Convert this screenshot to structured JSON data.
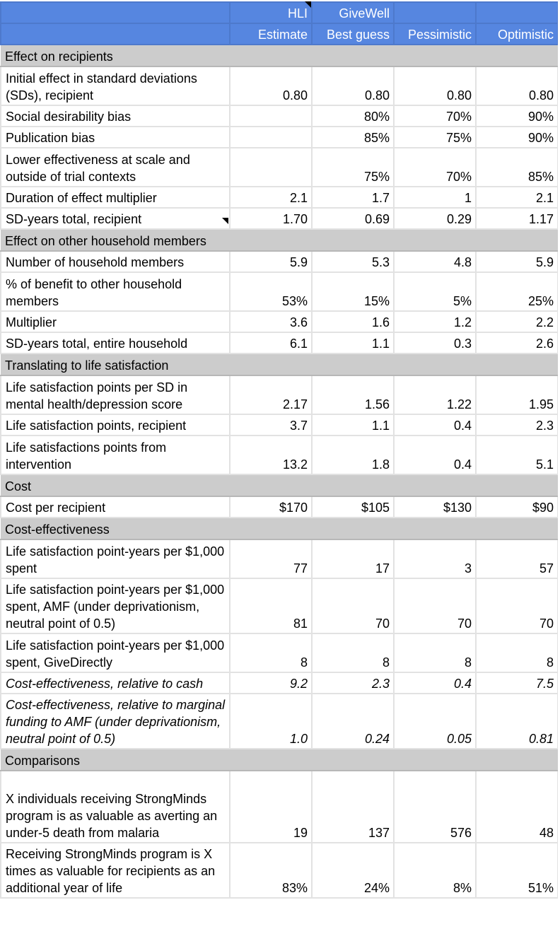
{
  "header": {
    "row1": [
      "",
      "HLI",
      "GiveWell",
      "",
      ""
    ],
    "row2": [
      "",
      "Estimate",
      "Best guess",
      "Pessimistic",
      "Optimistic"
    ]
  },
  "sections": [
    {
      "title": "Effect on recipients",
      "rows": [
        {
          "label": "Initial effect in standard deviations (SDs), recipient",
          "values": [
            "0.80",
            "0.80",
            "0.80",
            "0.80"
          ],
          "lines": 2
        },
        {
          "label": "Social desirability bias",
          "values": [
            "",
            "80%",
            "70%",
            "90%"
          ],
          "lines": 1
        },
        {
          "label": "Publication bias",
          "values": [
            "",
            "85%",
            "75%",
            "90%"
          ],
          "lines": 1
        },
        {
          "label": "Lower effectiveness at scale and outside of trial contexts",
          "values": [
            "",
            "75%",
            "70%",
            "85%"
          ],
          "lines": 2
        },
        {
          "label": "Duration of effect multiplier",
          "values": [
            "2.1",
            "1.7",
            "1",
            "2.1"
          ],
          "lines": 1
        },
        {
          "label": "SD-years total, recipient",
          "values": [
            "1.70",
            "0.69",
            "0.29",
            "1.17"
          ],
          "lines": 1,
          "note": true
        }
      ]
    },
    {
      "title": "Effect on other household members",
      "rows": [
        {
          "label": "Number of household members",
          "values": [
            "5.9",
            "5.3",
            "4.8",
            "5.9"
          ],
          "lines": 1
        },
        {
          "label": "% of benefit to other household members",
          "values": [
            "53%",
            "15%",
            "5%",
            "25%"
          ],
          "lines": 2
        },
        {
          "label": "Multiplier",
          "values": [
            "3.6",
            "1.6",
            "1.2",
            "2.2"
          ],
          "lines": 1
        },
        {
          "label": "SD-years total, entire household",
          "values": [
            "6.1",
            "1.1",
            "0.3",
            "2.6"
          ],
          "lines": 1
        }
      ]
    },
    {
      "title": "Translating to life satisfaction",
      "rows": [
        {
          "label": "Life satisfaction points per SD in mental health/depression score",
          "values": [
            "2.17",
            "1.56",
            "1.22",
            "1.95"
          ],
          "lines": 2
        },
        {
          "label": "Life satisfaction points, recipient",
          "values": [
            "3.7",
            "1.1",
            "0.4",
            "2.3"
          ],
          "lines": 1
        },
        {
          "label": "Life satisfactions points from intervention",
          "values": [
            "13.2",
            "1.8",
            "0.4",
            "5.1"
          ],
          "lines": 2
        }
      ]
    },
    {
      "title": "Cost",
      "rows": [
        {
          "label": "Cost per recipient",
          "values": [
            "$170",
            "$105",
            "$130",
            "$90"
          ],
          "lines": 1
        }
      ]
    },
    {
      "title": "Cost-effectiveness",
      "rows": [
        {
          "label": "Life satisfaction point-years per $1,000 spent",
          "values": [
            "77",
            "17",
            "3",
            "57"
          ],
          "lines": 2
        },
        {
          "label": "Life satisfaction point-years per $1,000 spent, AMF (under deprivationism, neutral point of 0.5)",
          "values": [
            "81",
            "70",
            "70",
            "70"
          ],
          "lines": 3
        },
        {
          "label": "Life satisfaction point-years per $1,000 spent, GiveDirectly",
          "values": [
            "8",
            "8",
            "8",
            "8"
          ],
          "lines": 2
        },
        {
          "label": "Cost-effectiveness, relative to cash",
          "values": [
            "9.2",
            "2.3",
            "0.4",
            "7.5"
          ],
          "lines": 1,
          "italic": true
        },
        {
          "label": "Cost-effectiveness, relative to marginal funding to AMF (under deprivationism, neutral point of 0.5)",
          "values": [
            "1.0",
            "0.24",
            "0.05",
            "0.81"
          ],
          "lines": 3,
          "italic": true
        }
      ]
    },
    {
      "title": "Comparisons",
      "rows": [
        {
          "label": "X individuals receiving StrongMinds program is as valuable as averting an under-5 death from malaria",
          "values": [
            "19",
            "137",
            "576",
            "48"
          ],
          "lines": 4
        },
        {
          "label": "Receiving StrongMinds program is X times as valuable for recipients as an additional year of life",
          "values": [
            "83%",
            "24%",
            "8%",
            "51%"
          ],
          "lines": 3
        }
      ]
    }
  ],
  "colors": {
    "header_bg": "#5686e0",
    "header_text": "#ffffff",
    "section_bg": "#cccccc",
    "grid": "#e2e2e2"
  }
}
